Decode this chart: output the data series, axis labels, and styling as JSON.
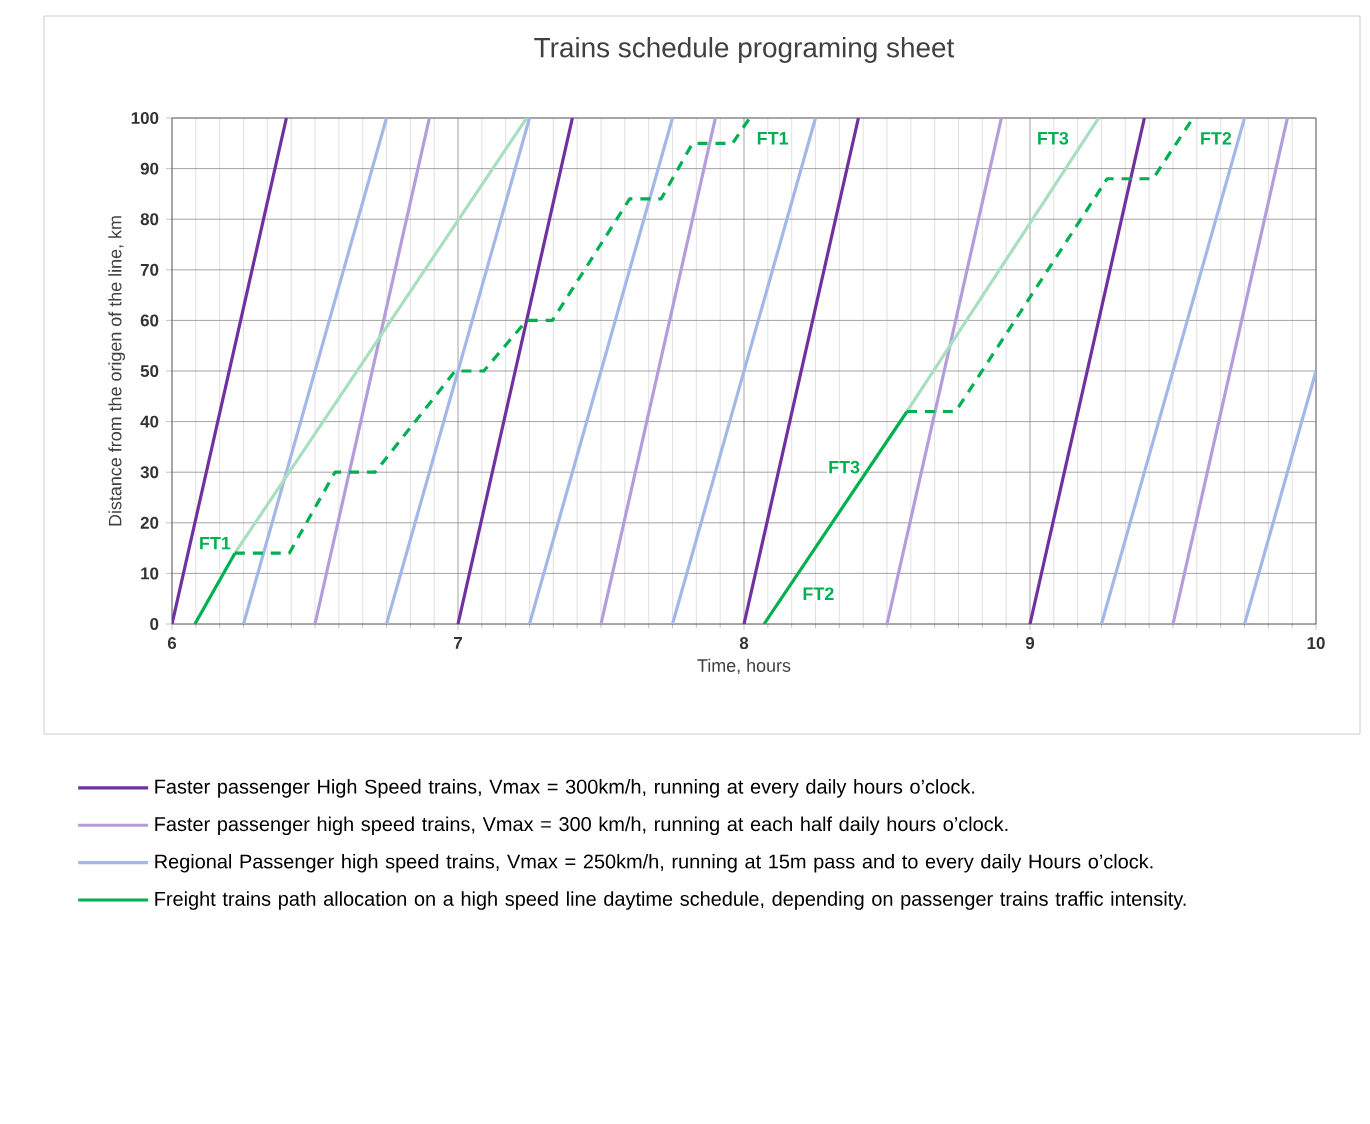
{
  "chart_data": {
    "type": "line",
    "title": "Trains schedule programing sheet",
    "xlabel": "Time, hours",
    "ylabel": "Distance from the origen of the line, km",
    "xlim": [
      6,
      10
    ],
    "ylim": [
      0,
      100
    ],
    "xticks": [
      6,
      7,
      8,
      9,
      10
    ],
    "yticks": [
      0,
      10,
      20,
      30,
      40,
      50,
      60,
      70,
      80,
      90,
      100
    ],
    "grid": true,
    "legend": "bottom",
    "series": [
      {
        "name": "Faster passenger High Speed trains, Vmax = 300km/h, running at every daily hours o’clock.",
        "color": "#7030a0",
        "x": [
          6,
          6.4
        ],
        "values": [
          0,
          100
        ]
      },
      {
        "color": "#7030a0",
        "x": [
          7,
          7.4
        ],
        "values": [
          0,
          100
        ]
      },
      {
        "color": "#7030a0",
        "x": [
          8,
          8.4
        ],
        "values": [
          0,
          100
        ]
      },
      {
        "color": "#7030a0",
        "x": [
          9,
          9.4
        ],
        "values": [
          0,
          100
        ]
      },
      {
        "name": "Faster passenger high speed trains, Vmax = 300 km/h,  running at each half daily hours o’clock.",
        "color": "#b39ddb",
        "x": [
          6.5,
          6.9
        ],
        "values": [
          0,
          100
        ]
      },
      {
        "color": "#b39ddb",
        "x": [
          7.5,
          7.9
        ],
        "values": [
          0,
          100
        ]
      },
      {
        "color": "#b39ddb",
        "x": [
          8.5,
          8.9
        ],
        "values": [
          0,
          100
        ]
      },
      {
        "color": "#b39ddb",
        "x": [
          9.5,
          9.9
        ],
        "values": [
          0,
          100
        ]
      },
      {
        "name": "Regional Passenger high speed trains, Vmax = 250km/h, running at 15m pass and to every daily Hours o’clock.",
        "color": "#a3b8e6",
        "x": [
          6.25,
          6.75
        ],
        "values": [
          0,
          100
        ]
      },
      {
        "color": "#a3b8e6",
        "x": [
          6.75,
          7.25
        ],
        "values": [
          0,
          100
        ]
      },
      {
        "color": "#a3b8e6",
        "x": [
          7.25,
          7.75
        ],
        "values": [
          0,
          100
        ]
      },
      {
        "color": "#a3b8e6",
        "x": [
          7.75,
          8.25
        ],
        "values": [
          0,
          100
        ]
      },
      {
        "color": "#a3b8e6",
        "x": [
          9.25,
          9.75
        ],
        "values": [
          0,
          100
        ]
      },
      {
        "color": "#a3b8e6",
        "x": [
          9.75,
          10
        ],
        "values": [
          0,
          50
        ]
      },
      {
        "color": "#a8dfc0",
        "x": [
          6.22,
          7.24
        ],
        "values": [
          14,
          100
        ]
      },
      {
        "color": "#a8dfc0",
        "x": [
          8.57,
          9.24
        ],
        "values": [
          42,
          100
        ]
      },
      {
        "name": "Freight trains path allocation on a high speed line daytime schedule, depending on passenger trains traffic intensity.",
        "color": "#00b050",
        "x": [
          6.08,
          6.22
        ],
        "values": [
          0,
          14
        ]
      },
      {
        "color": "#00b050",
        "line_style": "dashed",
        "x": [
          6.22,
          6.41,
          6.57,
          6.71,
          6.99,
          7.09,
          7.24,
          7.33,
          7.6,
          7.71,
          7.82,
          7.96,
          8.02
        ],
        "values": [
          14,
          14,
          30,
          30,
          50,
          50,
          60,
          60,
          84,
          84,
          95,
          95,
          100
        ]
      },
      {
        "color": "#00b050",
        "x": [
          8.07,
          8.57
        ],
        "values": [
          0,
          42
        ]
      },
      {
        "color": "#00b050",
        "line_style": "dashed",
        "x": [
          8.57,
          8.74,
          9.27,
          9.43,
          9.57
        ],
        "values": [
          42,
          42,
          88,
          88,
          100
        ]
      }
    ],
    "annotations": [
      {
        "text": "FT1",
        "x": 6.15,
        "y": 16
      },
      {
        "text": "FT1",
        "x": 8.1,
        "y": 96
      },
      {
        "text": "FT2",
        "x": 8.26,
        "y": 6
      },
      {
        "text": "FT2",
        "x": 9.65,
        "y": 96
      },
      {
        "text": "FT3",
        "x": 8.35,
        "y": 31
      },
      {
        "text": "FT3",
        "x": 9.08,
        "y": 96
      }
    ]
  }
}
